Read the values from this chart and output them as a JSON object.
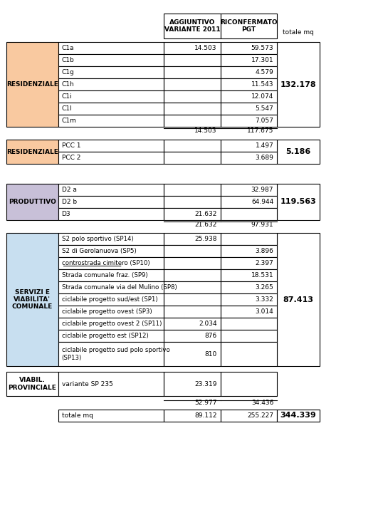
{
  "header_col1": "AGGIUNTIVO\nVARIANTE 2011",
  "header_col2": "RICONFERMATO\nPGT",
  "totale_mq_label": "totale mq",
  "section1_label": "RESIDENZIALE",
  "section1_color": "#F9C9A0",
  "section1_rows": [
    {
      "name": "C1a",
      "aggiuntivo": "14.503",
      "riconfermato": "59.573"
    },
    {
      "name": "C1b",
      "aggiuntivo": "",
      "riconfermato": "17.301"
    },
    {
      "name": "C1g",
      "aggiuntivo": "",
      "riconfermato": "4.579"
    },
    {
      "name": "C1h",
      "aggiuntivo": "",
      "riconfermato": "11.543"
    },
    {
      "name": "C1i",
      "aggiuntivo": "",
      "riconfermato": "12.074"
    },
    {
      "name": "C1l",
      "aggiuntivo": "",
      "riconfermato": "5.547"
    },
    {
      "name": "C1m",
      "aggiuntivo": "",
      "riconfermato": "7.057"
    }
  ],
  "section1_subtotal_aggiuntivo": "14.503",
  "section1_subtotal_riconfermato": "117.675",
  "section1_totale": "132.178",
  "section2_label": "RESIDENZIALE",
  "section2_color": "#F9C9A0",
  "section2_rows": [
    {
      "name": "PCC 1",
      "aggiuntivo": "",
      "riconfermato": "1.497"
    },
    {
      "name": "PCC 2",
      "aggiuntivo": "",
      "riconfermato": "3.689"
    }
  ],
  "section2_totale": "5.186",
  "section3_label": "PRODUTTIVO",
  "section3_color": "#C8C0D8",
  "section3_rows": [
    {
      "name": "D2 a",
      "aggiuntivo": "",
      "riconfermato": "32.987"
    },
    {
      "name": "D2 b",
      "aggiuntivo": "",
      "riconfermato": "64.944"
    },
    {
      "name": "D3",
      "aggiuntivo": "21.632",
      "riconfermato": ""
    }
  ],
  "section3_subtotal_aggiuntivo": "21.632",
  "section3_subtotal_riconfermato": "97.931",
  "section3_totale": "119.563",
  "section4_label": "SERVIZI E\nVIABILITA'\nCOMUNALE",
  "section4_color": "#C8DFF0",
  "section4_rows": [
    {
      "name": "S2 polo sportivo (SP14)",
      "aggiuntivo": "25.938",
      "riconfermato": ""
    },
    {
      "name": "S2 di Gerolanuova (SP5)",
      "aggiuntivo": "",
      "riconfermato": "3.896"
    },
    {
      "name": "controstrada cimitero (SP10)",
      "aggiuntivo": "",
      "riconfermato": "2.397",
      "underline": true
    },
    {
      "name": "Strada comunale fraz. (SP9)",
      "aggiuntivo": "",
      "riconfermato": "18.531"
    },
    {
      "name": "Strada comunale via del Mulino (SP8)",
      "aggiuntivo": "",
      "riconfermato": "3.265"
    },
    {
      "name": "ciclabile progetto sud/est (SP1)",
      "aggiuntivo": "",
      "riconfermato": "3.332"
    },
    {
      "name": "ciclabile progetto ovest (SP3)",
      "aggiuntivo": "",
      "riconfermato": "3.014"
    },
    {
      "name": "ciclabile progetto ovest 2 (SP11)",
      "aggiuntivo": "2.034",
      "riconfermato": ""
    },
    {
      "name": "ciclabile progetto est (SP12)",
      "aggiuntivo": "876",
      "riconfermato": ""
    },
    {
      "name": "ciclabile progetto sud polo sportivo\n(SP13)",
      "aggiuntivo": "810",
      "riconfermato": ""
    }
  ],
  "section4_totale": "87.413",
  "section5_label": "VIABIL.\nPROVINCIALE",
  "section5_color": "#FFFFFF",
  "section5_rows": [
    {
      "name": "variante SP 235",
      "aggiuntivo": "23.319",
      "riconfermato": ""
    }
  ],
  "grand_subtotal_aggiuntivo": "52.977",
  "grand_subtotal_riconfermato": "34.436",
  "grand_total_label": "totale mq",
  "grand_total_aggiuntivo": "89.112",
  "grand_total_riconfermato": "255.227",
  "grand_total": "344.339",
  "bg_color": "#FFFFFF",
  "border_color": "#000000",
  "text_color": "#000000",
  "header_bg": "#FFFFFF"
}
